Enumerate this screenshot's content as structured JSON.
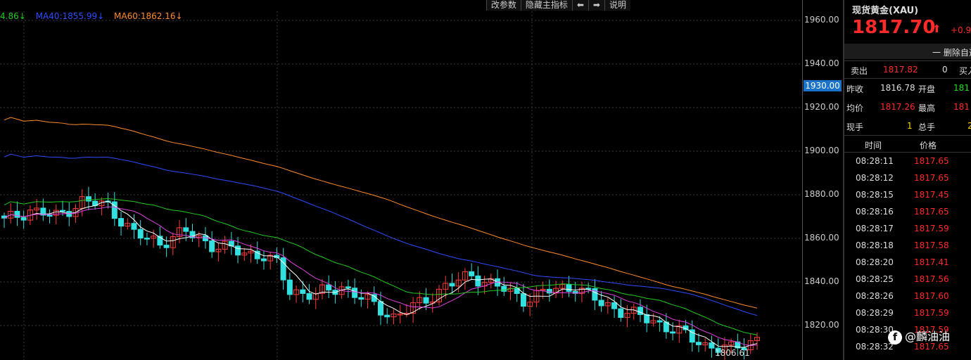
{
  "chart": {
    "legend": [
      {
        "label": "4.86↓",
        "color": "#22cc22"
      },
      {
        "label": "MA40:1855.99↓",
        "color": "#2c4cff"
      },
      {
        "label": "MA60:1862.16↓",
        "color": "#ff8a2a"
      }
    ],
    "y_ticks": [
      "1960.00",
      "1940.00",
      "1920.00",
      "1900.00",
      "1880.00",
      "1860.00",
      "1840.00",
      "1820.00"
    ],
    "highlight_price": "1930.00",
    "low_label": "1806.61"
  },
  "toolbar": {
    "modify_params": "改参数",
    "hide_main_indicator": "隐藏主指标",
    "left_arrow": "⬅",
    "right_arrow": "➡",
    "help": "说明"
  },
  "panel": {
    "title": "现货黄金(XAU)",
    "price": "1817.70",
    "arrow": "⬆",
    "change": "+0.9",
    "delete_label": "一 删除自选",
    "sell_label": "卖出",
    "sell_price": "1817.82",
    "sell_qty": "0",
    "buy_label": "买入",
    "prev_close_label": "昨收",
    "prev_close": "1816.78",
    "open_label": "开盘",
    "open": "181",
    "avg_label": "均价",
    "avg": "1817.26",
    "high_label": "最高",
    "high": "181",
    "current_hand_label": "现手",
    "current_hand": "1",
    "total_hand_label": "总手",
    "total_hand": "2",
    "time_header": "时间",
    "price_header": "价格",
    "trades": [
      {
        "time": "08:28:11",
        "price": "1817.65"
      },
      {
        "time": "08:28:12",
        "price": "1817.65"
      },
      {
        "time": "08:28:15",
        "price": "1817.45"
      },
      {
        "time": "08:28:16",
        "price": "1817.65"
      },
      {
        "time": "08:28:17",
        "price": "1817.59"
      },
      {
        "time": "08:28:18",
        "price": "1817.58"
      },
      {
        "time": "08:28:20",
        "price": "1817.41"
      },
      {
        "time": "08:28:25",
        "price": "1817.56"
      },
      {
        "time": "08:28:26",
        "price": "1817.60"
      },
      {
        "time": "08:28:29",
        "price": "1817.59"
      },
      {
        "time": "08:28:30",
        "price": "1817.59"
      },
      {
        "time": "08:28:32",
        "price": "1817.65"
      }
    ]
  },
  "watermark": {
    "badge": "f",
    "text": "@麟油油"
  }
}
